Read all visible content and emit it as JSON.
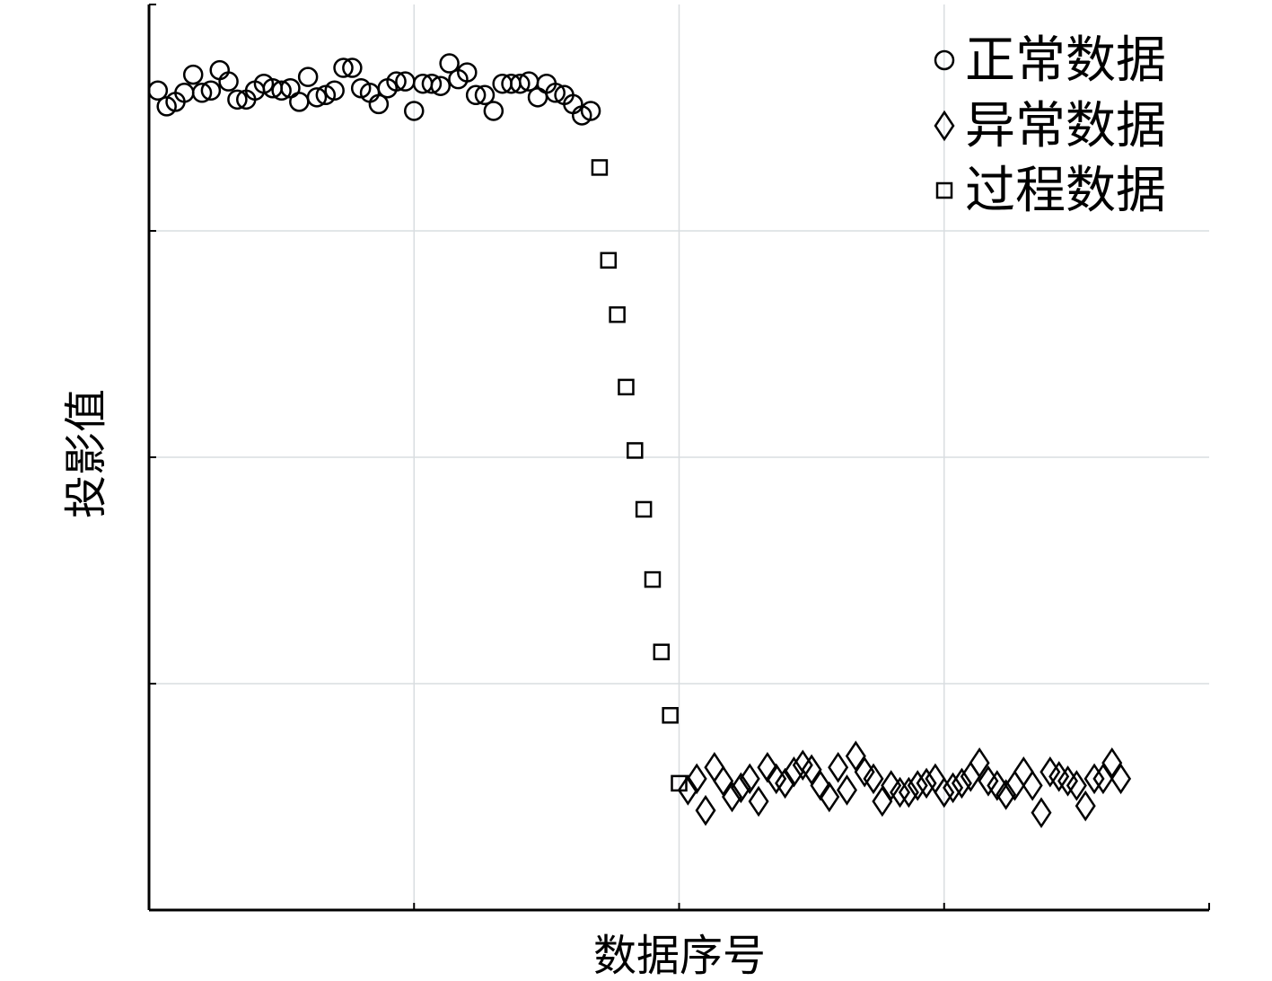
{
  "chart_data": {
    "type": "scatter",
    "title": "",
    "xlabel": "数据序号",
    "ylabel": "投影值",
    "xlim": [
      0,
      120
    ],
    "ylim": [
      0,
      4
    ],
    "x_ticks": [
      0,
      30,
      60,
      90,
      120
    ],
    "y_ticks": [
      0,
      1,
      2,
      3,
      4
    ],
    "tick_labels_shown": false,
    "grid": true,
    "legend_position": "top-right",
    "series": [
      {
        "name": "正常数据",
        "marker": "circle",
        "points": [
          [
            1,
            3.62
          ],
          [
            2,
            3.55
          ],
          [
            3,
            3.57
          ],
          [
            4,
            3.61
          ],
          [
            5,
            3.69
          ],
          [
            6,
            3.61
          ],
          [
            7,
            3.62
          ],
          [
            8,
            3.71
          ],
          [
            9,
            3.66
          ],
          [
            10,
            3.58
          ],
          [
            11,
            3.58
          ],
          [
            12,
            3.62
          ],
          [
            13,
            3.65
          ],
          [
            14,
            3.63
          ],
          [
            15,
            3.62
          ],
          [
            16,
            3.63
          ],
          [
            17,
            3.57
          ],
          [
            18,
            3.68
          ],
          [
            19,
            3.59
          ],
          [
            20,
            3.6
          ],
          [
            21,
            3.62
          ],
          [
            22,
            3.72
          ],
          [
            23,
            3.72
          ],
          [
            24,
            3.63
          ],
          [
            25,
            3.61
          ],
          [
            26,
            3.56
          ],
          [
            27,
            3.63
          ],
          [
            28,
            3.66
          ],
          [
            29,
            3.66
          ],
          [
            30,
            3.53
          ],
          [
            31,
            3.65
          ],
          [
            32,
            3.65
          ],
          [
            33,
            3.64
          ],
          [
            34,
            3.74
          ],
          [
            35,
            3.67
          ],
          [
            36,
            3.7
          ],
          [
            37,
            3.6
          ],
          [
            38,
            3.6
          ],
          [
            39,
            3.53
          ],
          [
            40,
            3.65
          ],
          [
            41,
            3.65
          ],
          [
            42,
            3.65
          ],
          [
            43,
            3.66
          ],
          [
            44,
            3.59
          ],
          [
            45,
            3.65
          ],
          [
            46,
            3.61
          ],
          [
            47,
            3.6
          ],
          [
            48,
            3.56
          ],
          [
            49,
            3.51
          ],
          [
            50,
            3.53
          ]
        ]
      },
      {
        "name": "异常数据",
        "marker": "diamond",
        "points": [
          [
            61,
            0.53
          ],
          [
            62,
            0.58
          ],
          [
            63,
            0.44
          ],
          [
            64,
            0.63
          ],
          [
            65,
            0.57
          ],
          [
            66,
            0.5
          ],
          [
            67,
            0.54
          ],
          [
            68,
            0.58
          ],
          [
            69,
            0.48
          ],
          [
            70,
            0.63
          ],
          [
            71,
            0.58
          ],
          [
            72,
            0.56
          ],
          [
            73,
            0.61
          ],
          [
            74,
            0.64
          ],
          [
            75,
            0.62
          ],
          [
            76,
            0.55
          ],
          [
            77,
            0.5
          ],
          [
            78,
            0.63
          ],
          [
            79,
            0.53
          ],
          [
            80,
            0.68
          ],
          [
            81,
            0.61
          ],
          [
            82,
            0.58
          ],
          [
            83,
            0.48
          ],
          [
            84,
            0.55
          ],
          [
            85,
            0.52
          ],
          [
            86,
            0.52
          ],
          [
            87,
            0.55
          ],
          [
            88,
            0.56
          ],
          [
            89,
            0.58
          ],
          [
            90,
            0.52
          ],
          [
            91,
            0.54
          ],
          [
            92,
            0.56
          ],
          [
            93,
            0.59
          ],
          [
            94,
            0.65
          ],
          [
            95,
            0.57
          ],
          [
            96,
            0.55
          ],
          [
            97,
            0.51
          ],
          [
            98,
            0.55
          ],
          [
            99,
            0.61
          ],
          [
            100,
            0.55
          ],
          [
            101,
            0.43
          ],
          [
            102,
            0.61
          ],
          [
            103,
            0.59
          ],
          [
            104,
            0.57
          ],
          [
            105,
            0.55
          ],
          [
            106,
            0.46
          ],
          [
            107,
            0.58
          ],
          [
            108,
            0.58
          ],
          [
            109,
            0.65
          ],
          [
            110,
            0.58
          ]
        ]
      },
      {
        "name": "过程数据",
        "marker": "square",
        "points": [
          [
            51,
            3.28
          ],
          [
            52,
            2.87
          ],
          [
            53,
            2.63
          ],
          [
            54,
            2.31
          ],
          [
            55,
            2.03
          ],
          [
            56,
            1.77
          ],
          [
            57,
            1.46
          ],
          [
            58,
            1.14
          ],
          [
            59,
            0.86
          ],
          [
            60,
            0.56
          ]
        ]
      }
    ]
  }
}
